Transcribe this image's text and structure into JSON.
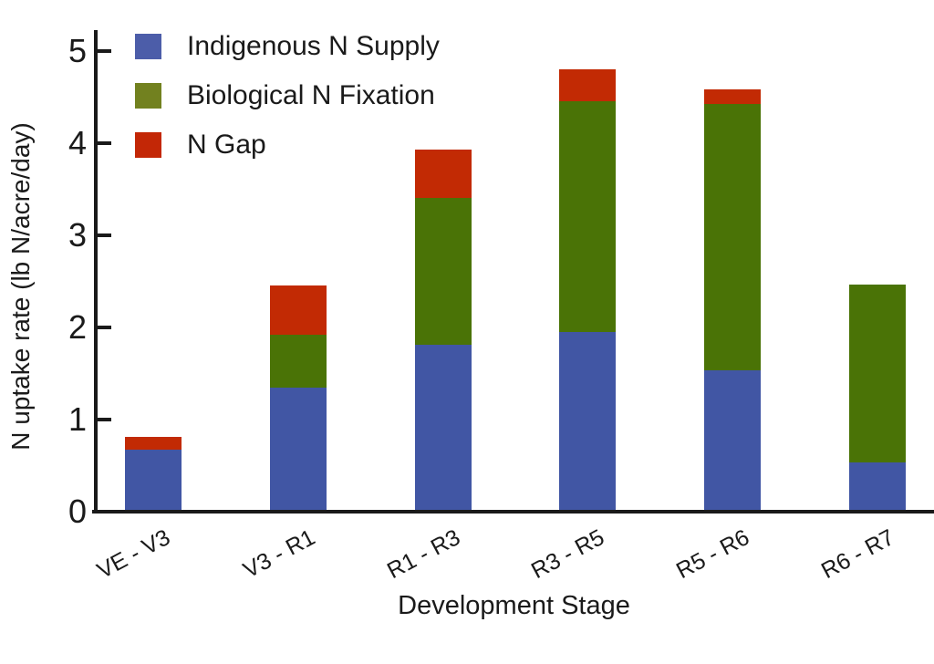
{
  "chart_data": {
    "type": "bar",
    "stacked": true,
    "title": "",
    "xlabel": "Development Stage",
    "ylabel": "N uptake rate (lb N/acre/day)",
    "categories": [
      "VE - V3",
      "V3 - R1",
      "R1 - R3",
      "R3 - R5",
      "R5 - R6",
      "R6 - R7"
    ],
    "series": [
      {
        "name": "Indigenous N Supply",
        "color": "#4156A4",
        "legend_color": "#4C5DA9",
        "values": [
          0.67,
          1.35,
          1.81,
          1.95,
          1.53,
          0.53
        ]
      },
      {
        "name": "Biological N Fixation",
        "color": "#4A7306",
        "legend_color": "#72811F",
        "values": [
          0.0,
          0.57,
          1.6,
          2.51,
          2.9,
          1.94
        ]
      },
      {
        "name": "N Gap",
        "color": "#C22A04",
        "legend_color": "#C32706",
        "values": [
          0.14,
          0.54,
          0.52,
          0.34,
          0.15,
          0.0
        ]
      }
    ],
    "totals": [
      0.81,
      2.46,
      3.93,
      4.8,
      4.58,
      2.47
    ],
    "ylim": [
      0,
      5.2
    ],
    "yticks": [
      "0",
      "1",
      "2",
      "3",
      "4",
      "5"
    ],
    "grid": false,
    "legend_position": "upper-left",
    "axis_color": "#1a1a1a",
    "background_color": "#ffffff"
  }
}
